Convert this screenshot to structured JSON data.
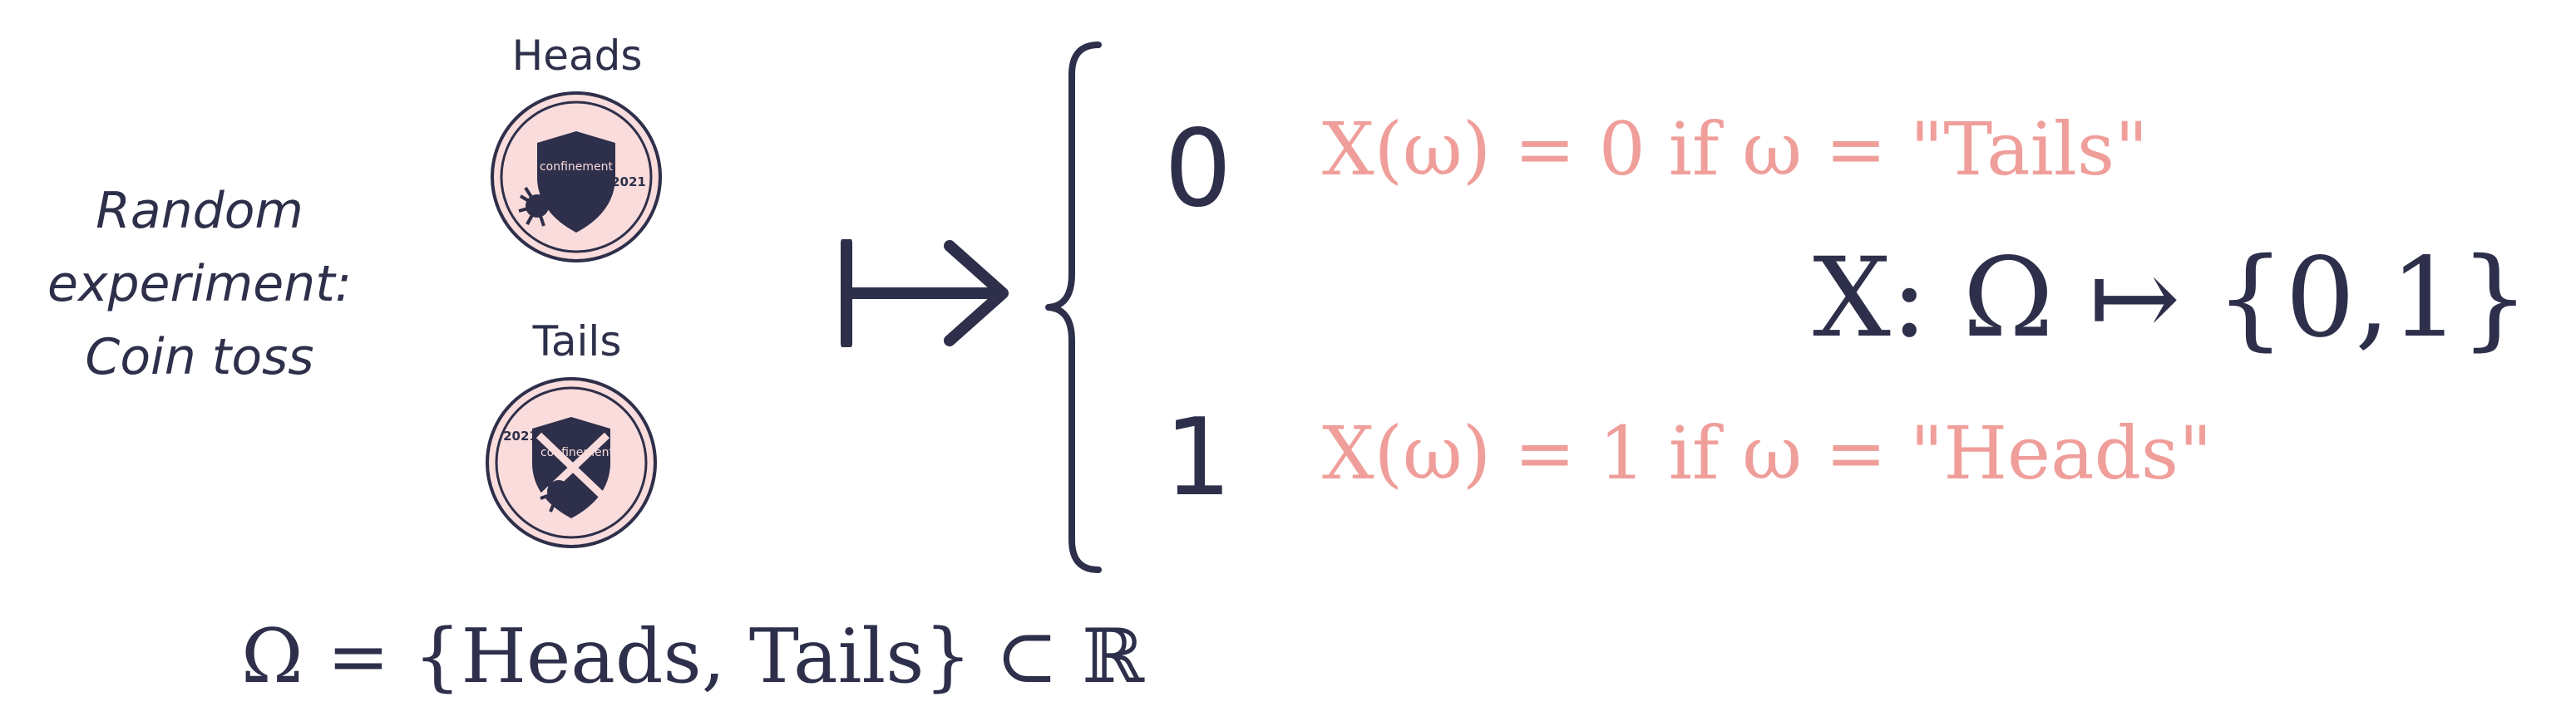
{
  "caption": {
    "line1": "Random",
    "line2": "experiment:",
    "line3": "Coin toss"
  },
  "coins": {
    "heads_label": "Heads",
    "tails_label": "Tails",
    "inscription": "confinement",
    "year": "2021"
  },
  "outcomes": {
    "zero_digit": "0",
    "one_digit": "1",
    "zero_rule": "X(ω) = 0 if ω = \"Tails\"",
    "one_rule": "X(ω) = 1 if ω = \"Heads\""
  },
  "mapping": "X: Ω ↦ {0,1}",
  "sample_space": "Ω = {Heads, Tails}  ⊂ ℝ",
  "colors": {
    "ink": "#2e2f4a",
    "pink_text": "#ef9e9a",
    "coin_fill": "#f9dcdb"
  }
}
